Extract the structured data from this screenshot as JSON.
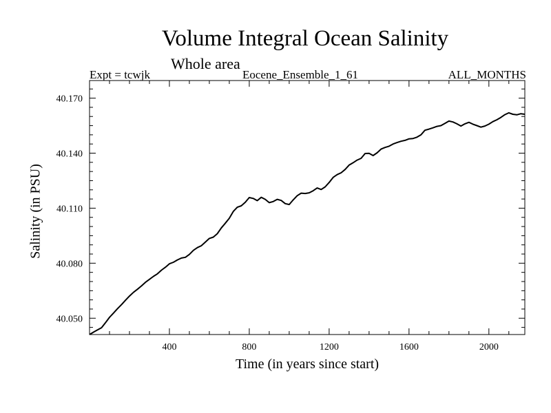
{
  "chart_data": {
    "type": "line",
    "title": "Volume Integral Ocean Salinity",
    "subtitle": "Whole area",
    "meta_left": "Expt = tcwjk",
    "meta_center": "Eocene_Ensemble_1_61",
    "meta_right": "ALL_MONTHS",
    "xlabel": "Time (in years since start)",
    "ylabel": "Salinity (in PSU)",
    "xlim": [
      0,
      2180
    ],
    "ylim": [
      40.0411,
      40.1796
    ],
    "xticks": [
      400,
      800,
      1200,
      1600,
      2000
    ],
    "xtick_labels": [
      "400",
      "800",
      "1200",
      "1600",
      "2000"
    ],
    "yticks": [
      40.05,
      40.08,
      40.11,
      40.14,
      40.17
    ],
    "ytick_labels": [
      "40.050",
      "40.080",
      "40.110",
      "40.140",
      "40.170"
    ],
    "grid": false,
    "series": [
      {
        "x": [
          0,
          20,
          40,
          60,
          80,
          100,
          120,
          140,
          160,
          180,
          200,
          220,
          240,
          260,
          280,
          300,
          320,
          340,
          360,
          380,
          400,
          420,
          440,
          460,
          480,
          500,
          520,
          540,
          560,
          580,
          600,
          620,
          640,
          660,
          680,
          700,
          720,
          740,
          760,
          780,
          800,
          820,
          840,
          860,
          880,
          900,
          920,
          940,
          960,
          980,
          1000,
          1020,
          1040,
          1060,
          1080,
          1100,
          1120,
          1140,
          1160,
          1180,
          1200,
          1220,
          1240,
          1260,
          1280,
          1300,
          1320,
          1340,
          1360,
          1380,
          1400,
          1420,
          1440,
          1460,
          1480,
          1500,
          1520,
          1540,
          1560,
          1580,
          1600,
          1620,
          1640,
          1660,
          1680,
          1700,
          1720,
          1740,
          1760,
          1780,
          1800,
          1820,
          1840,
          1860,
          1880,
          1900,
          1920,
          1940,
          1960,
          1980,
          2000,
          2020,
          2040,
          2060,
          2080,
          2100,
          2120,
          2140,
          2160,
          2180
        ],
        "y": [
          40.0411,
          40.0424,
          40.0436,
          40.0448,
          40.0476,
          40.0505,
          40.0528,
          40.0552,
          40.0574,
          40.0598,
          40.0621,
          40.0641,
          40.0658,
          40.0676,
          40.0696,
          40.0712,
          40.0728,
          40.0742,
          40.0762,
          40.0778,
          40.0797,
          40.0805,
          40.0818,
          40.0828,
          40.0832,
          40.0848,
          40.087,
          40.0885,
          40.0895,
          40.0915,
          40.0935,
          40.0942,
          40.0961,
          40.0992,
          40.1018,
          40.1045,
          40.1082,
          40.1105,
          40.1113,
          40.1132,
          40.1158,
          40.1153,
          40.1141,
          40.1159,
          40.1148,
          40.113,
          40.1136,
          40.1148,
          40.1142,
          40.1125,
          40.112,
          40.1145,
          40.1168,
          40.1182,
          40.118,
          40.1184,
          40.1195,
          40.121,
          40.1202,
          40.1216,
          40.124,
          40.1268,
          40.1283,
          40.1293,
          40.1311,
          40.1335,
          40.1348,
          40.1362,
          40.1372,
          40.1398,
          40.1399,
          40.1387,
          40.1402,
          40.1422,
          40.1431,
          40.1438,
          40.145,
          40.1458,
          40.1465,
          40.147,
          40.1478,
          40.148,
          40.1487,
          40.15,
          40.1525,
          40.1531,
          40.1538,
          40.1546,
          40.155,
          40.1562,
          40.1575,
          40.157,
          40.156,
          40.1548,
          40.156,
          40.1568,
          40.1558,
          40.155,
          40.1542,
          40.1548,
          40.1558,
          40.1572,
          40.1582,
          40.1595,
          40.161,
          40.162,
          40.1612,
          40.1609,
          40.1615,
          40.1612
        ]
      }
    ]
  }
}
